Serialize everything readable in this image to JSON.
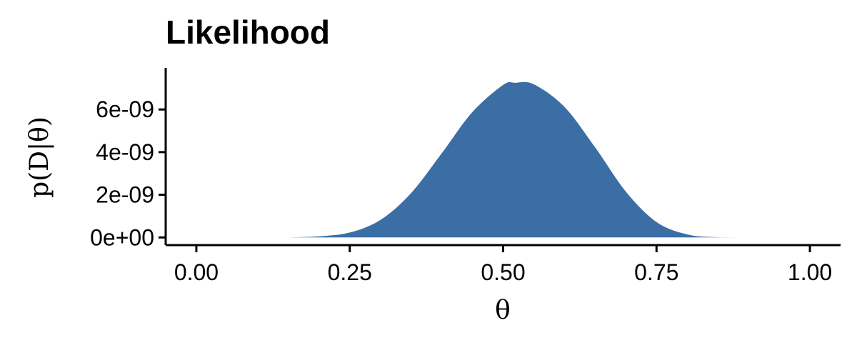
{
  "chart_data": {
    "type": "area",
    "title": "Likelihood",
    "xlabel": "θ",
    "ylabel": "p(D|θ)",
    "xlim": [
      -0.05,
      1.05
    ],
    "ylim": [
      -3.6e-10,
      7.95e-09
    ],
    "x_ticks": [
      0,
      0.25,
      0.5,
      0.75,
      1
    ],
    "x_tick_labels": [
      "0.00",
      "0.25",
      "0.50",
      "0.75",
      "1.00"
    ],
    "y_ticks": [
      0,
      2e-09,
      4e-09,
      6e-09
    ],
    "y_tick_labels": [
      "0e+00",
      "2e-09",
      "4e-09",
      "6e-09"
    ],
    "series": [
      {
        "color": "#3A6EA5",
        "x": [
          0.0,
          0.05,
          0.1,
          0.15,
          0.2,
          0.25,
          0.3,
          0.35,
          0.4,
          0.45,
          0.5,
          0.52,
          0.55,
          0.6,
          0.65,
          0.7,
          0.75,
          0.8,
          0.85,
          0.9,
          0.95,
          1.0
        ],
        "y": [
          0,
          0,
          0,
          0,
          5e-11,
          2.3e-10,
          8.2e-10,
          2.08e-09,
          3.95e-09,
          5.88e-09,
          7.15e-09,
          7.25e-09,
          7.18e-09,
          6.12e-09,
          4.22e-09,
          2.15e-09,
          7.2e-10,
          1.4e-10,
          1e-11,
          0,
          0,
          0
        ]
      }
    ],
    "grid": false,
    "legend": "none"
  }
}
